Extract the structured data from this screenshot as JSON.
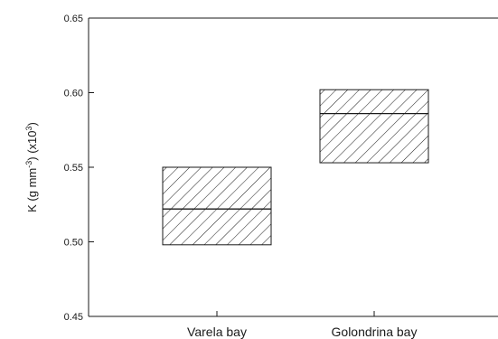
{
  "chart_data": {
    "type": "box",
    "title": "",
    "xlabel": "",
    "ylabel": "K (g mm⁻³) (x10³)",
    "ylabel_parts": {
      "pre": "K (g mm",
      "sup1": "-3",
      "mid": ") (x10",
      "sup2": "3",
      "post": ")"
    },
    "ylim": [
      0.45,
      0.65
    ],
    "yticks": [
      {
        "value": 0.45,
        "label": "0.45"
      },
      {
        "value": 0.5,
        "label": "0.50"
      },
      {
        "value": 0.55,
        "label": "0.55"
      },
      {
        "value": 0.6,
        "label": "0.60"
      },
      {
        "value": 0.65,
        "label": "0.65"
      }
    ],
    "categories": [
      "Varela bay",
      "Golondrina bay"
    ],
    "boxes": [
      {
        "category": "Varela bay",
        "low": 0.498,
        "median": 0.522,
        "high": 0.55
      },
      {
        "category": "Golondrina bay",
        "low": 0.553,
        "median": 0.586,
        "high": 0.602
      }
    ],
    "fill_pattern": "diagonal-hatch",
    "grid": false,
    "legend": "none"
  }
}
